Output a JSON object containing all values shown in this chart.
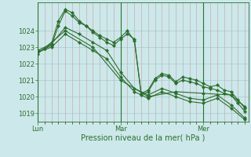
{
  "xlabel": "Pression niveau de la mer( hPa )",
  "background_color": "#cce8ea",
  "grid_minor_color": "#c8a0a0",
  "grid_major_color": "#a8cccf",
  "line_color": "#2d6e2d",
  "ylim": [
    1018.5,
    1025.7
  ],
  "yticks": [
    1019,
    1020,
    1021,
    1022,
    1023,
    1024
  ],
  "day_positions": [
    0,
    48,
    96
  ],
  "day_labels": [
    "Lun",
    "Mar",
    "Mer"
  ],
  "xlim": [
    0,
    122
  ],
  "series": [
    {
      "x": [
        0,
        4,
        8,
        12,
        16,
        20,
        24,
        28,
        32,
        36,
        40,
        44,
        48,
        52,
        56,
        60,
        64,
        68,
        72,
        76,
        80,
        84,
        88,
        92,
        96,
        100,
        104,
        108,
        112,
        116,
        120
      ],
      "y": [
        1022.7,
        1022.9,
        1023.1,
        1024.3,
        1025.2,
        1024.9,
        1024.5,
        1024.3,
        1023.9,
        1023.6,
        1023.3,
        1023.1,
        1023.5,
        1023.8,
        1023.5,
        1020.1,
        1020.3,
        1021.0,
        1021.3,
        1021.2,
        1020.8,
        1021.0,
        1020.9,
        1020.8,
        1020.6,
        1020.5,
        1020.4,
        1020.2,
        1020.1,
        1019.6,
        1019.1
      ]
    },
    {
      "x": [
        0,
        4,
        8,
        12,
        16,
        20,
        24,
        28,
        32,
        36,
        40,
        44,
        48,
        52,
        56,
        60,
        64,
        68,
        72,
        76,
        80,
        84,
        88,
        92,
        96,
        100,
        104,
        108,
        112,
        116,
        120
      ],
      "y": [
        1022.7,
        1022.9,
        1023.2,
        1024.6,
        1025.3,
        1025.1,
        1024.6,
        1024.3,
        1024.0,
        1023.7,
        1023.5,
        1023.3,
        1023.6,
        1024.0,
        1023.4,
        1020.2,
        1020.4,
        1021.1,
        1021.4,
        1021.3,
        1020.9,
        1021.2,
        1021.1,
        1021.0,
        1020.8,
        1020.6,
        1020.7,
        1020.4,
        1020.3,
        1019.8,
        1019.3
      ]
    },
    {
      "x": [
        0,
        8,
        16,
        24,
        32,
        40,
        48,
        56,
        64,
        72,
        80,
        88,
        96,
        104,
        112,
        120
      ],
      "y": [
        1022.8,
        1023.2,
        1024.2,
        1023.8,
        1023.3,
        1022.8,
        1021.5,
        1020.5,
        1020.1,
        1020.5,
        1020.2,
        1019.9,
        1019.8,
        1020.1,
        1019.5,
        1018.7
      ]
    },
    {
      "x": [
        0,
        8,
        16,
        24,
        32,
        40,
        48,
        56,
        64,
        72,
        80,
        88,
        96,
        104,
        112,
        120
      ],
      "y": [
        1022.7,
        1023.0,
        1023.8,
        1023.3,
        1022.8,
        1022.3,
        1021.2,
        1020.3,
        1019.9,
        1020.3,
        1020.0,
        1019.7,
        1019.6,
        1019.9,
        1019.3,
        1018.6
      ]
    },
    {
      "x": [
        0,
        16,
        32,
        48,
        64,
        80,
        96,
        112,
        120
      ],
      "y": [
        1022.6,
        1024.0,
        1023.0,
        1021.0,
        1020.0,
        1020.3,
        1020.2,
        1020.1,
        1019.4
      ]
    }
  ]
}
